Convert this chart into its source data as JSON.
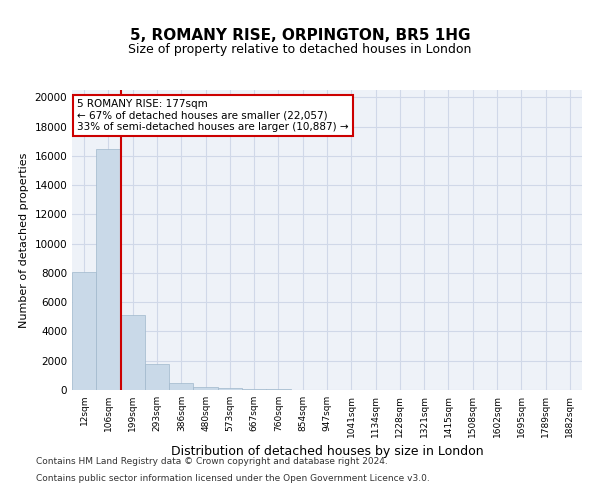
{
  "title": "5, ROMANY RISE, ORPINGTON, BR5 1HG",
  "subtitle": "Size of property relative to detached houses in London",
  "xlabel": "Distribution of detached houses by size in London",
  "ylabel": "Number of detached properties",
  "bin_labels": [
    "12sqm",
    "106sqm",
    "199sqm",
    "293sqm",
    "386sqm",
    "480sqm",
    "573sqm",
    "667sqm",
    "760sqm",
    "854sqm",
    "947sqm",
    "1041sqm",
    "1134sqm",
    "1228sqm",
    "1321sqm",
    "1415sqm",
    "1508sqm",
    "1602sqm",
    "1695sqm",
    "1789sqm",
    "1882sqm"
  ],
  "bar_heights": [
    8050,
    16500,
    5100,
    1750,
    500,
    200,
    130,
    90,
    50,
    10,
    0,
    0,
    0,
    0,
    0,
    0,
    0,
    0,
    0,
    0,
    0
  ],
  "bar_color": "#c9d9e8",
  "bar_edgecolor": "#a0b8cc",
  "property_line_bin": 2,
  "property_line_color": "#cc0000",
  "annotation_text": "5 ROMANY RISE: 177sqm\n← 67% of detached houses are smaller (22,057)\n33% of semi-detached houses are larger (10,887) →",
  "annotation_box_edgecolor": "#cc0000",
  "ylim": [
    0,
    20500
  ],
  "yticks": [
    0,
    2000,
    4000,
    6000,
    8000,
    10000,
    12000,
    14000,
    16000,
    18000,
    20000
  ],
  "grid_color": "#d0d8e8",
  "footer_line1": "Contains HM Land Registry data © Crown copyright and database right 2024.",
  "footer_line2": "Contains public sector information licensed under the Open Government Licence v3.0.",
  "background_color": "#ffffff",
  "plot_bg_color": "#eef2f8"
}
